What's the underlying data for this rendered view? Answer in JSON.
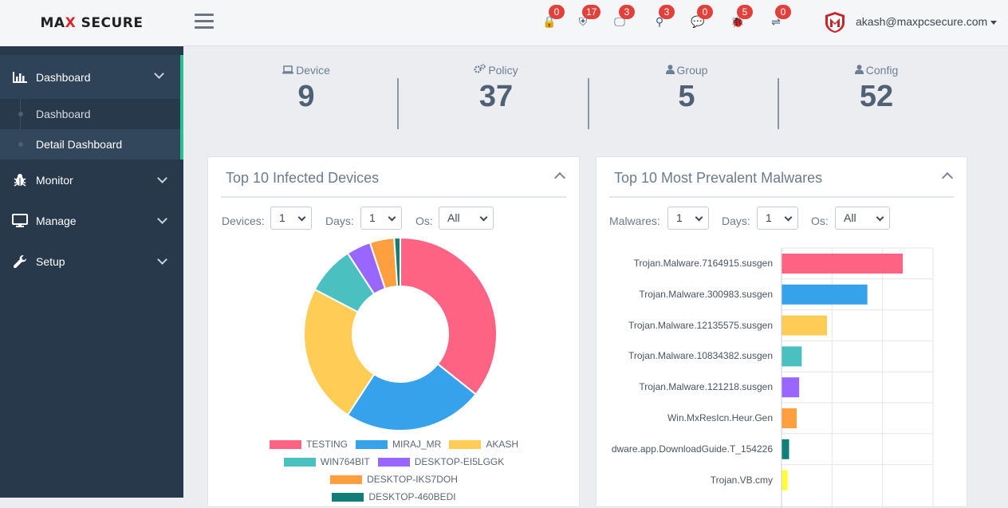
{
  "header": {
    "logo_left": "MA",
    "logo_x": "X",
    "logo_right": " SECURE",
    "notifications": [
      {
        "icon": "lock-icon",
        "glyph": "🔒",
        "count": "0"
      },
      {
        "icon": "shield-icon",
        "glyph": "⛨",
        "count": "17"
      },
      {
        "icon": "monitor-icon",
        "glyph": "🖵",
        "count": "3"
      },
      {
        "icon": "search-icon",
        "glyph": "⚲",
        "count": "3"
      },
      {
        "icon": "chat-icon",
        "glyph": "💬",
        "count": "0"
      },
      {
        "icon": "bug-icon",
        "glyph": "🐞",
        "count": "5"
      },
      {
        "icon": "usb-icon",
        "glyph": "⇌",
        "count": "0"
      }
    ],
    "user_email": "akash@maxpcsecure.com"
  },
  "sidebar": {
    "items": [
      {
        "label": "Dashboard",
        "icon": "bar-chart-icon"
      },
      {
        "label": "Monitor",
        "icon": "bug-icon"
      },
      {
        "label": "Manage",
        "icon": "desktop-icon"
      },
      {
        "label": "Setup",
        "icon": "wrench-icon"
      }
    ],
    "sub_items": [
      {
        "label": "Dashboard"
      },
      {
        "label": "Detail Dashboard"
      }
    ]
  },
  "stats": [
    {
      "label": "Device",
      "icon": "laptop-icon",
      "value": "9"
    },
    {
      "label": "Policy",
      "icon": "cogs-icon",
      "value": "37"
    },
    {
      "label": "Group",
      "icon": "user-icon",
      "value": "5"
    },
    {
      "label": "Config",
      "icon": "user-icon",
      "value": "52"
    }
  ],
  "infected_panel": {
    "title": "Top 10 Infected Devices",
    "filters": {
      "devices_label": "Devices:",
      "devices_value": "1",
      "days_label": "Days:",
      "days_value": "1",
      "os_label": "Os:",
      "os_value": "All"
    },
    "legend": [
      "TESTING",
      "MIRAJ_MR",
      "AKASH",
      "WIN764BIT",
      "DESKTOP-EI5LGGK",
      "DESKTOP-IKS7DOH",
      "DESKTOP-460BEDI"
    ]
  },
  "malware_panel": {
    "title": "Top 10 Most Prevalent Malwares",
    "filters": {
      "malwares_label": "Malwares:",
      "malwares_value": "1",
      "days_label": "Days:",
      "days_value": "1",
      "os_label": "Os:",
      "os_value": "All"
    }
  },
  "chart_data": [
    {
      "type": "pie",
      "title": "Top 10 Infected Devices",
      "donut": true,
      "categories": [
        "TESTING",
        "MIRAJ_MR",
        "AKASH",
        "WIN764BIT",
        "DESKTOP-EI5LGGK",
        "DESKTOP-IKS7DOH",
        "DESKTOP-460BEDI"
      ],
      "values": [
        35,
        23,
        23,
        8,
        4,
        4,
        1
      ],
      "colors": [
        "#ff6384",
        "#36a2eb",
        "#ffcd56",
        "#4bc0c0",
        "#9966ff",
        "#ff9f40",
        "#0f7f78"
      ],
      "legend": "bottom"
    },
    {
      "type": "bar",
      "orientation": "horizontal",
      "title": "Top 10 Most Prevalent Malwares",
      "categories": [
        "Trojan.Malware.7164915.susgen",
        "Trojan.Malware.300983.susgen",
        "Trojan.Malware.12135575.susgen",
        "Trojan.Malware.10834382.susgen",
        "Trojan.Malware.121218.susgen",
        "Win.MxResIcn.Heur.Gen",
        "dware.app.DownloadGuide.T_154226",
        "Trojan.VB.cmy"
      ],
      "values": [
        24,
        17,
        9,
        4,
        3.5,
        3,
        1.5,
        1.2
      ],
      "colors": [
        "#ff6384",
        "#36a2eb",
        "#ffcd56",
        "#4bc0c0",
        "#9966ff",
        "#ff9f40",
        "#0f7f78",
        "#ffff33"
      ],
      "xlim": [
        0,
        30
      ],
      "grid": true
    }
  ]
}
